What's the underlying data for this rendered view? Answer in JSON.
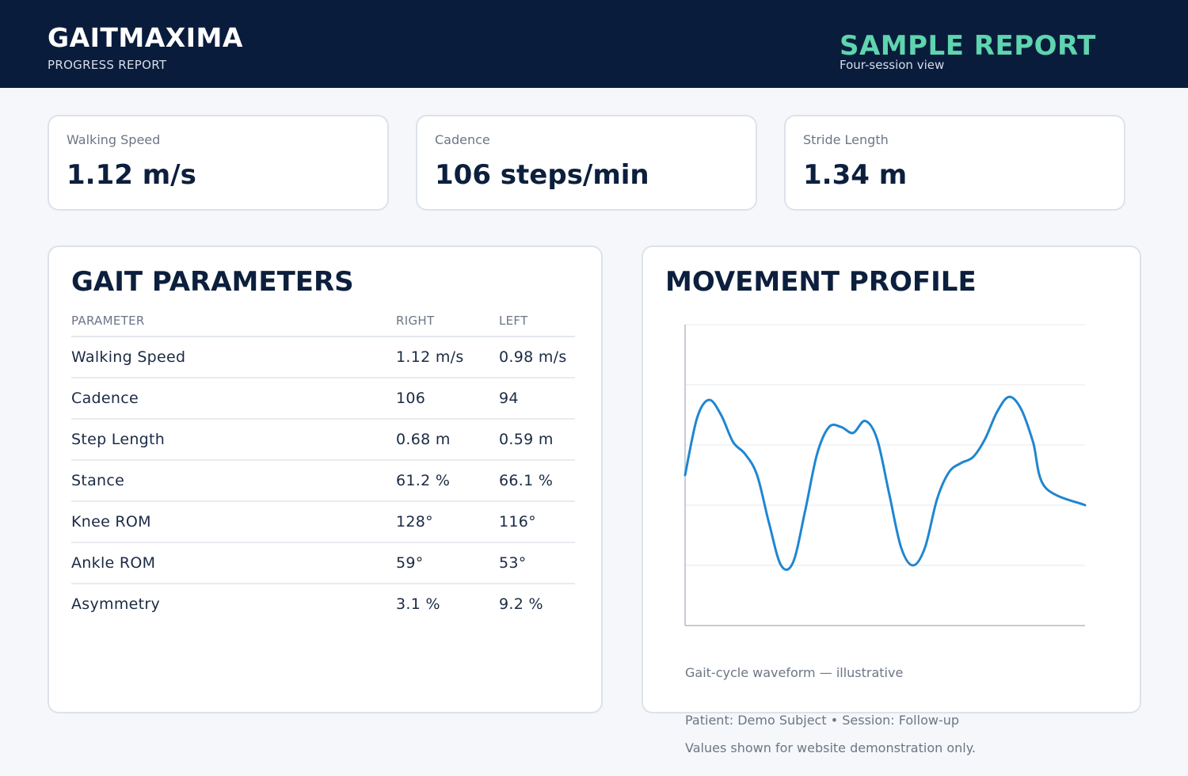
{
  "header": {
    "brand": "GAITMAXIMA",
    "subtitle": "PROGRESS REPORT",
    "report_title": "SAMPLE REPORT",
    "report_subtitle": "Four-session view"
  },
  "stats": [
    {
      "label": "Walking Speed",
      "value": "1.12 m/s"
    },
    {
      "label": "Cadence",
      "value": "106 steps/min"
    },
    {
      "label": "Stride Length",
      "value": "1.34 m"
    }
  ],
  "gait_parameters": {
    "title": "GAIT PARAMETERS",
    "columns": [
      "PARAMETER",
      "RIGHT",
      "LEFT"
    ],
    "rows": [
      [
        "Walking Speed",
        "1.12 m/s",
        "0.98 m/s"
      ],
      [
        "Cadence",
        "106",
        "94"
      ],
      [
        "Step Length",
        "0.68 m",
        "0.59 m"
      ],
      [
        "Stance",
        "61.2 %",
        "66.1 %"
      ],
      [
        "Knee ROM",
        "128°",
        "116°"
      ],
      [
        "Ankle ROM",
        "59°",
        "53°"
      ],
      [
        "Asymmetry",
        "3.1 %",
        "9.2 %"
      ]
    ]
  },
  "movement_profile": {
    "title": "MOVEMENT PROFILE",
    "caption": "Gait-cycle waveform — illustrative",
    "line_color": "#1f86d1"
  },
  "chart_data": {
    "type": "line",
    "title": "MOVEMENT PROFILE",
    "xlabel": "",
    "ylabel": "",
    "xlim": [
      0,
      100
    ],
    "ylim": [
      0,
      5
    ],
    "grid": true,
    "series": [
      {
        "values": [
          [
            0,
            2.5
          ],
          [
            3,
            3.45
          ],
          [
            6,
            3.75
          ],
          [
            9,
            3.5
          ],
          [
            12,
            3.05
          ],
          [
            15,
            2.85
          ],
          [
            18,
            2.5
          ],
          [
            21,
            1.7
          ],
          [
            24,
            1.0
          ],
          [
            27,
            1.05
          ],
          [
            30,
            1.9
          ],
          [
            33,
            2.85
          ],
          [
            36,
            3.3
          ],
          [
            39,
            3.3
          ],
          [
            42,
            3.2
          ],
          [
            45,
            3.4
          ],
          [
            48,
            3.1
          ],
          [
            51,
            2.2
          ],
          [
            54,
            1.3
          ],
          [
            57,
            1.0
          ],
          [
            60,
            1.3
          ],
          [
            63,
            2.1
          ],
          [
            66,
            2.55
          ],
          [
            69,
            2.7
          ],
          [
            72,
            2.8
          ],
          [
            75,
            3.1
          ],
          [
            78,
            3.55
          ],
          [
            81,
            3.8
          ],
          [
            84,
            3.6
          ],
          [
            87,
            3.05
          ],
          [
            90,
            2.3
          ],
          [
            100,
            2.0
          ]
        ]
      }
    ]
  },
  "footer": {
    "patient_line": "Patient: Demo Subject  •  Session: Follow-up",
    "disclaimer": "Values shown for website demonstration only."
  }
}
